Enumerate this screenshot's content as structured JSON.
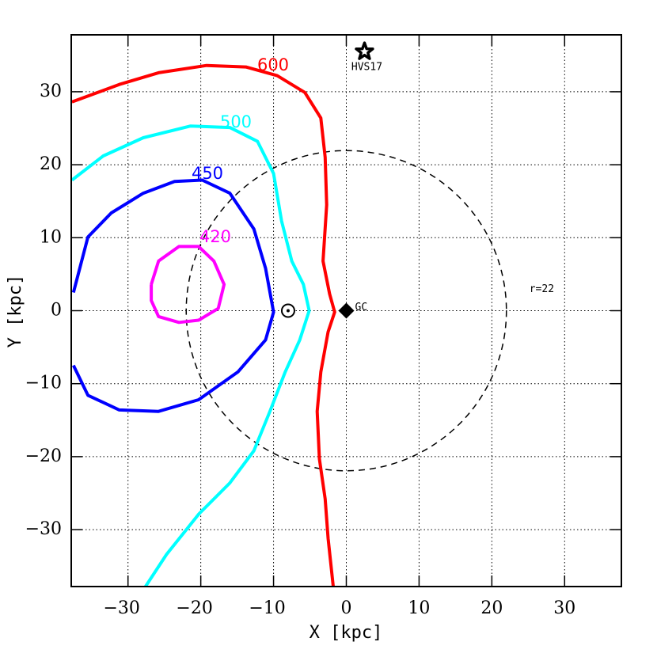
{
  "chart_data": {
    "type": "line",
    "x_label": "X [kpc]",
    "y_label": "Y [kpc]",
    "xlim": [
      -37.8,
      37.8
    ],
    "ylim": [
      -37.8,
      37.8
    ],
    "xticks": [
      {
        "value": -30,
        "label": "−30"
      },
      {
        "value": -20,
        "label": "−20"
      },
      {
        "value": -10,
        "label": "−10"
      },
      0,
      10,
      20,
      30
    ],
    "yticks": [
      {
        "value": -30,
        "label": "−30"
      },
      {
        "value": -20,
        "label": "−20"
      },
      {
        "value": -10,
        "label": "−10"
      },
      0,
      10,
      20,
      30
    ],
    "grid": true,
    "series": [
      {
        "name": "600",
        "color": "#ff0000",
        "x": [
          -37.7,
          -31.2,
          -25.8,
          -19.2,
          -13.8,
          -9.5,
          -5.7,
          -3.5,
          -2.9,
          -2.7,
          -3.2,
          -2.3,
          -1.6,
          -2.5,
          -3.5,
          -4.0,
          -3.7,
          -2.9,
          -2.5,
          -1.8
        ],
        "y": [
          28.6,
          31.0,
          32.6,
          33.6,
          33.4,
          32.2,
          29.9,
          26.4,
          21.0,
          14.5,
          6.8,
          2.3,
          -0.2,
          -2.9,
          -8.4,
          -13.8,
          -20.3,
          -25.8,
          -31.2,
          -37.8
        ]
      },
      {
        "name": "500",
        "color": "#00ffff",
        "x": [
          -37.7,
          -33.4,
          -27.9,
          -21.4,
          -16.0,
          -12.2,
          -10.0,
          -8.9,
          -7.5,
          -5.9,
          -5.1,
          -6.4,
          -8.4,
          -10.5,
          -12.7,
          -16.0,
          -20.3,
          -24.7,
          -27.6
        ],
        "y": [
          17.9,
          21.2,
          23.7,
          25.3,
          25.1,
          23.2,
          18.8,
          12.3,
          6.8,
          3.6,
          0.0,
          -4.0,
          -8.4,
          -13.8,
          -19.2,
          -23.6,
          -27.9,
          -33.4,
          -37.8
        ]
      },
      {
        "name": "450",
        "color": "#0000ff",
        "x": [
          -37.5,
          -35.5,
          -32.3,
          -27.9,
          -23.6,
          -19.8,
          -16.0,
          -12.7,
          -11.1,
          -10.0,
          -11.1,
          -14.9,
          -20.3,
          -25.8,
          -31.2,
          -35.5,
          -37.5
        ],
        "y": [
          2.5,
          10.1,
          13.4,
          16.1,
          17.7,
          17.9,
          16.1,
          11.2,
          5.8,
          -0.2,
          -4.0,
          -8.4,
          -12.2,
          -13.8,
          -13.6,
          -11.6,
          -7.5
        ]
      },
      {
        "name": "420",
        "color": "#ff00ff",
        "x": [
          -26.8,
          -25.8,
          -23.0,
          -20.3,
          -18.2,
          -16.8,
          -17.6,
          -20.3,
          -23.0,
          -25.8,
          -26.8,
          -26.8
        ],
        "y": [
          3.6,
          6.8,
          8.8,
          8.8,
          6.8,
          3.6,
          0.3,
          -1.3,
          -1.6,
          -0.8,
          1.4,
          3.6
        ]
      }
    ],
    "circle": {
      "label": "r=22",
      "radius": 22
    },
    "sun": {
      "x": -8,
      "y": 0
    },
    "markers": [
      {
        "label": "GC",
        "symbol": "diamond",
        "x": 0,
        "y": 0
      },
      {
        "label": "HVS17",
        "symbol": "star",
        "x": 2.5,
        "y": 35.5
      }
    ]
  }
}
